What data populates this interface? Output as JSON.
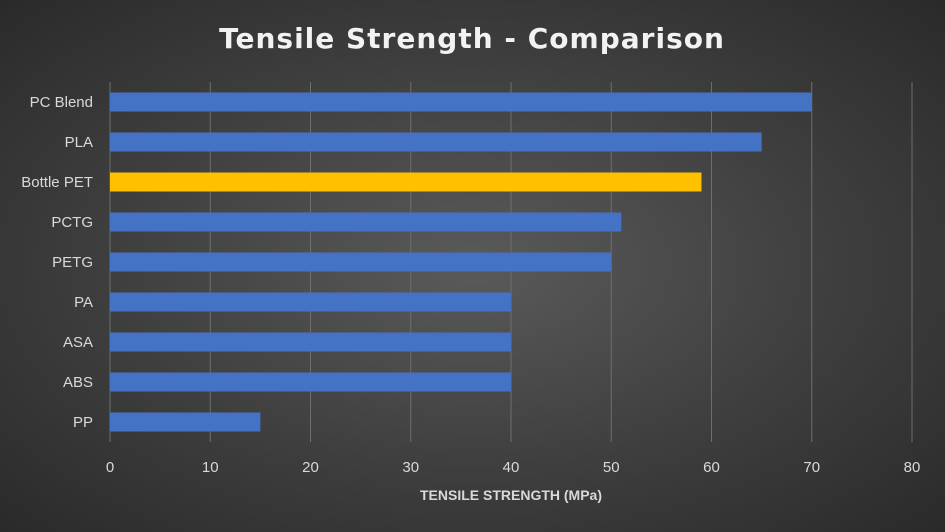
{
  "chart_data": {
    "type": "bar",
    "orientation": "horizontal",
    "title": "Tensile Strength - Comparison",
    "xlabel": "TENSILE STRENGTH (MPa)",
    "ylabel": "",
    "xlim": [
      0,
      80
    ],
    "x_ticks": [
      0,
      10,
      20,
      30,
      40,
      50,
      60,
      70,
      80
    ],
    "grid": "vertical",
    "legend": "none",
    "categories": [
      "PC Blend",
      "PLA",
      "Bottle PET",
      "PCTG",
      "PETG",
      "PA",
      "ASA",
      "ABS",
      "PP"
    ],
    "values": [
      70,
      65,
      59,
      51,
      50,
      40,
      40,
      40,
      15
    ],
    "highlight": "Bottle PET",
    "colors": {
      "bar": "#4472c4",
      "bar_highlight": "#ffc000",
      "text": "#d9d9d9",
      "title": "#f2f2f2",
      "grid": "#6e6e6e"
    }
  }
}
